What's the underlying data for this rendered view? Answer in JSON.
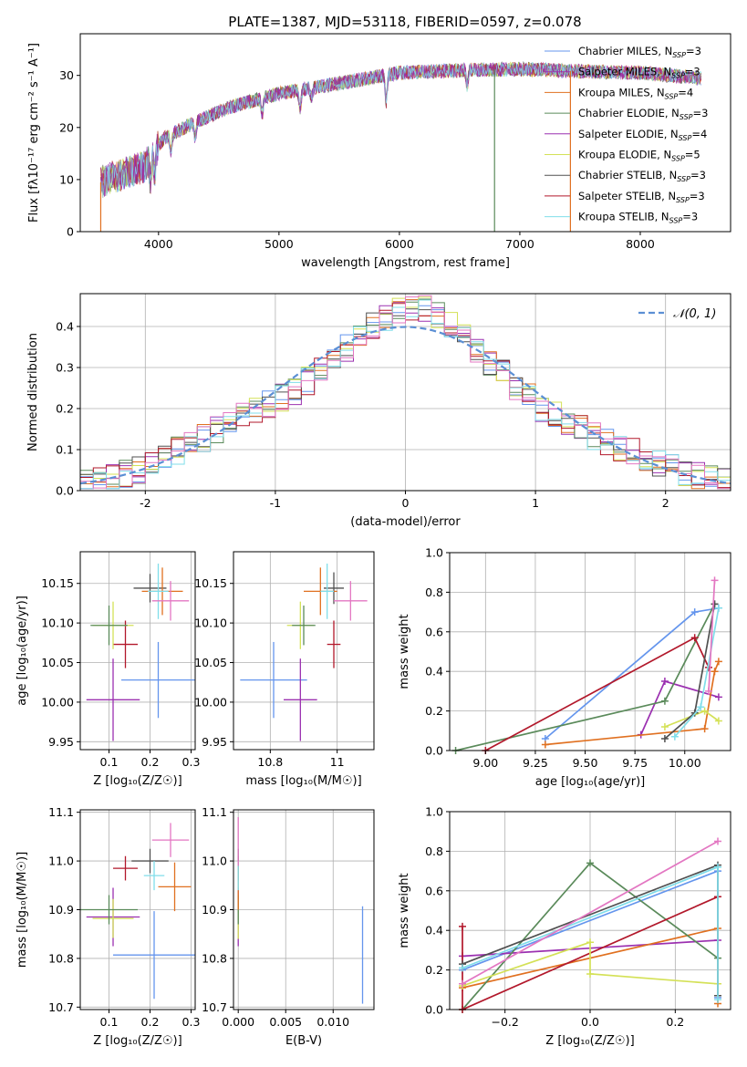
{
  "figure_title": "PLATE=1387, MJD=53118, FIBERID=0597, z=0.078",
  "palette": {
    "Chabrier MILES": "#6495ed",
    "Salpeter MILES": "#9b30b0",
    "Kroupa MILES": "#e07020",
    "Chabrier ELODIE": "#5a8a5a",
    "Salpeter ELODIE": "#9b30b0",
    "Kroupa ELODIE": "#d4e157",
    "Chabrier STELIB": "#505050",
    "Salpeter STELIB": "#b2182b",
    "Kroupa STELIB": "#80deea",
    "pink": "#e377c2",
    "normal_dashed": "#5b8fd4"
  },
  "chart_data": [
    {
      "id": "spectrum",
      "type": "line",
      "xlabel": "wavelength [Angstrom, rest frame]",
      "ylabel": "Flux [fλ10⁻¹⁷ erg cm⁻² s⁻¹ A⁻¹]",
      "xlim": [
        3350,
        8750
      ],
      "ylim": [
        0,
        38
      ],
      "xticks": [
        4000,
        5000,
        6000,
        7000,
        8000
      ],
      "yticks": [
        0,
        10,
        20,
        30
      ],
      "legend_position": "top-right",
      "legend": [
        {
          "label": "Chabrier MILES, N",
          "sub": "SSP",
          "suffix": "=3",
          "color": "#6495ed"
        },
        {
          "label": "Salpeter MILES, N",
          "sub": "SSP",
          "suffix": "=3",
          "color": "#9b30b0"
        },
        {
          "label": "Kroupa MILES, N",
          "sub": "SSP",
          "suffix": "=4",
          "color": "#e07020"
        },
        {
          "label": "Chabrier ELODIE, N",
          "sub": "SSP",
          "suffix": "=3",
          "color": "#5a8a5a"
        },
        {
          "label": "Salpeter ELODIE, N",
          "sub": "SSP",
          "suffix": "=4",
          "color": "#9b30b0"
        },
        {
          "label": "Kroupa ELODIE, N",
          "sub": "SSP",
          "suffix": "=5",
          "color": "#d4e157"
        },
        {
          "label": "Chabrier STELIB, N",
          "sub": "SSP",
          "suffix": "=3",
          "color": "#505050"
        },
        {
          "label": "Salpeter STELIB, N",
          "sub": "SSP",
          "suffix": "=3",
          "color": "#b2182b"
        },
        {
          "label": "Kroupa STELIB, N",
          "sub": "SSP",
          "suffix": "=3",
          "color": "#80deea"
        }
      ],
      "continuum_anchors": [
        [
          3520,
          9.5
        ],
        [
          3700,
          11
        ],
        [
          3880,
          12.5
        ],
        [
          3950,
          15
        ],
        [
          4050,
          18
        ],
        [
          4300,
          21
        ],
        [
          4600,
          24
        ],
        [
          5000,
          26.5
        ],
        [
          5500,
          28.5
        ],
        [
          6000,
          30.5
        ],
        [
          6500,
          31
        ],
        [
          7000,
          31.2
        ],
        [
          7500,
          30.8
        ],
        [
          8000,
          30.5
        ],
        [
          8500,
          29.5
        ]
      ],
      "drops": [
        {
          "x": 3520,
          "color": "#e07020"
        },
        {
          "x": 6790,
          "color": "#5a8a5a"
        },
        {
          "x": 7420,
          "color": "#e07020"
        }
      ]
    },
    {
      "id": "residuals",
      "type": "step-histogram",
      "xlabel": "(data-model)/error",
      "ylabel": "Normed distribution",
      "xlim": [
        -2.5,
        2.5
      ],
      "ylim": [
        0,
        0.48
      ],
      "xticks": [
        -2,
        -1,
        0,
        1,
        2
      ],
      "yticks": [
        0.0,
        0.1,
        0.2,
        0.3,
        0.4
      ],
      "bin_width": 0.1,
      "legend_position": "top-right",
      "legend": [
        {
          "label": "𝒩(0, 1)",
          "style": "dashed",
          "color": "#5b8fd4"
        }
      ],
      "grid": true
    },
    {
      "id": "age-vs-Z",
      "type": "errorbar",
      "xlabel": "Z [log₁₀(Z/Z☉)]",
      "ylabel": "age  [log₁₀(age/yr)]",
      "xlim": [
        0.03,
        0.31
      ],
      "ylim": [
        9.94,
        10.19
      ],
      "xticks": [
        0.1,
        0.2,
        0.3
      ],
      "yticks": [
        9.95,
        10.0,
        10.05,
        10.1,
        10.15
      ],
      "grid": true,
      "points": [
        {
          "x": 0.22,
          "y": 10.028,
          "xerr": 0.09,
          "yerr": 0.048,
          "color": "#6495ed"
        },
        {
          "x": 0.11,
          "y": 10.003,
          "xerr": 0.065,
          "yerr": 0.052,
          "color": "#9b30b0"
        },
        {
          "x": 0.14,
          "y": 10.073,
          "xerr": 0.03,
          "yerr": 0.03,
          "color": "#b2182b"
        },
        {
          "x": 0.11,
          "y": 10.097,
          "xerr": 0.05,
          "yerr": 0.03,
          "color": "#d4e157"
        },
        {
          "x": 0.1,
          "y": 10.097,
          "xerr": 0.045,
          "yerr": 0.025,
          "color": "#5a8a5a"
        },
        {
          "x": 0.2,
          "y": 10.144,
          "xerr": 0.04,
          "yerr": 0.018,
          "color": "#505050"
        },
        {
          "x": 0.23,
          "y": 10.14,
          "xerr": 0.05,
          "yerr": 0.03,
          "color": "#e07020"
        },
        {
          "x": 0.22,
          "y": 10.14,
          "xerr": 0.025,
          "yerr": 0.035,
          "color": "#80deea"
        },
        {
          "x": 0.25,
          "y": 10.128,
          "xerr": 0.045,
          "yerr": 0.025,
          "color": "#e377c2"
        }
      ]
    },
    {
      "id": "age-vs-mass",
      "type": "errorbar",
      "xlabel": "mass [log₁₀(M/M☉)]",
      "ylabel": "",
      "xlim": [
        10.69,
        11.11
      ],
      "ylim": [
        9.94,
        10.19
      ],
      "xticks": [
        10.8,
        11.0
      ],
      "yticks": [
        9.95,
        10.0,
        10.05,
        10.1,
        10.15
      ],
      "grid": true,
      "points": [
        {
          "x": 10.81,
          "y": 10.028,
          "xerr": 0.1,
          "yerr": 0.048,
          "color": "#6495ed"
        },
        {
          "x": 10.89,
          "y": 10.003,
          "xerr": 0.05,
          "yerr": 0.052,
          "color": "#9b30b0"
        },
        {
          "x": 10.99,
          "y": 10.073,
          "xerr": 0.02,
          "yerr": 0.03,
          "color": "#b2182b"
        },
        {
          "x": 10.89,
          "y": 10.097,
          "xerr": 0.04,
          "yerr": 0.03,
          "color": "#d4e157"
        },
        {
          "x": 10.9,
          "y": 10.097,
          "xerr": 0.035,
          "yerr": 0.025,
          "color": "#5a8a5a"
        },
        {
          "x": 10.99,
          "y": 10.144,
          "xerr": 0.03,
          "yerr": 0.02,
          "color": "#505050"
        },
        {
          "x": 10.95,
          "y": 10.14,
          "xerr": 0.05,
          "yerr": 0.03,
          "color": "#e07020"
        },
        {
          "x": 10.97,
          "y": 10.14,
          "xerr": 0.02,
          "yerr": 0.035,
          "color": "#80deea"
        },
        {
          "x": 11.04,
          "y": 10.128,
          "xerr": 0.05,
          "yerr": 0.025,
          "color": "#e377c2"
        }
      ]
    },
    {
      "id": "weight-vs-age",
      "type": "line",
      "xlabel": "age  [log₁₀(age/yr)]",
      "ylabel": "mass weight",
      "xlim": [
        8.82,
        10.23
      ],
      "ylim": [
        0,
        1.0
      ],
      "xticks": [
        9.0,
        9.25,
        9.5,
        9.75,
        10.0
      ],
      "xtick_labels": [
        "9.00",
        "9.25",
        "9.50",
        "9.75",
        "10.00"
      ],
      "yticks": [
        0.0,
        0.2,
        0.4,
        0.6,
        0.8,
        1.0
      ],
      "grid": true,
      "series": [
        {
          "color": "#6495ed",
          "points": [
            [
              9.3,
              0.06
            ],
            [
              10.05,
              0.7
            ],
            [
              10.17,
              0.72
            ]
          ]
        },
        {
          "color": "#9b30b0",
          "points": [
            [
              9.78,
              0.08
            ],
            [
              9.9,
              0.35
            ],
            [
              10.17,
              0.27
            ]
          ]
        },
        {
          "color": "#e07020",
          "points": [
            [
              9.3,
              0.03
            ],
            [
              10.1,
              0.11
            ],
            [
              10.15,
              0.4
            ],
            [
              10.17,
              0.45
            ]
          ]
        },
        {
          "color": "#5a8a5a",
          "points": [
            [
              8.85,
              0.0
            ],
            [
              9.9,
              0.25
            ],
            [
              10.15,
              0.74
            ]
          ]
        },
        {
          "color": "#b2182b",
          "points": [
            [
              9.0,
              0.0
            ],
            [
              10.05,
              0.57
            ],
            [
              10.12,
              0.42
            ]
          ]
        },
        {
          "color": "#d4e157",
          "points": [
            [
              9.9,
              0.12
            ],
            [
              10.1,
              0.2
            ],
            [
              10.17,
              0.15
            ]
          ]
        },
        {
          "color": "#505050",
          "points": [
            [
              9.9,
              0.06
            ],
            [
              10.05,
              0.19
            ],
            [
              10.15,
              0.74
            ]
          ]
        },
        {
          "color": "#80deea",
          "points": [
            [
              9.95,
              0.07
            ],
            [
              10.08,
              0.22
            ],
            [
              10.17,
              0.72
            ]
          ]
        },
        {
          "color": "#e377c2",
          "points": [
            [
              10.12,
              0.3
            ],
            [
              10.15,
              0.86
            ]
          ]
        }
      ]
    },
    {
      "id": "mass-vs-Z",
      "type": "errorbar",
      "xlabel": "Z [log₁₀(Z/Z☉)]",
      "ylabel": "mass [log₁₀(M/M☉)]",
      "xlim": [
        0.03,
        0.31
      ],
      "ylim": [
        10.695,
        11.105
      ],
      "xticks": [
        0.1,
        0.2,
        0.3
      ],
      "yticks": [
        10.7,
        10.8,
        10.9,
        11.0,
        11.1
      ],
      "grid": true,
      "points": [
        {
          "x": 0.21,
          "y": 10.807,
          "xerr": 0.1,
          "yerr": 0.09,
          "color": "#6495ed"
        },
        {
          "x": 0.11,
          "y": 10.885,
          "xerr": 0.065,
          "yerr": 0.06,
          "color": "#9b30b0"
        },
        {
          "x": 0.14,
          "y": 10.985,
          "xerr": 0.03,
          "yerr": 0.025,
          "color": "#b2182b"
        },
        {
          "x": 0.11,
          "y": 10.882,
          "xerr": 0.05,
          "yerr": 0.04,
          "color": "#d4e157"
        },
        {
          "x": 0.1,
          "y": 10.9,
          "xerr": 0.07,
          "yerr": 0.03,
          "color": "#5a8a5a"
        },
        {
          "x": 0.2,
          "y": 11.0,
          "xerr": 0.045,
          "yerr": 0.025,
          "color": "#505050"
        },
        {
          "x": 0.26,
          "y": 10.947,
          "xerr": 0.04,
          "yerr": 0.05,
          "color": "#e07020"
        },
        {
          "x": 0.21,
          "y": 10.97,
          "xerr": 0.025,
          "yerr": 0.03,
          "color": "#80deea"
        },
        {
          "x": 0.25,
          "y": 11.043,
          "xerr": 0.045,
          "yerr": 0.035,
          "color": "#e377c2"
        }
      ]
    },
    {
      "id": "mass-vs-EBV",
      "type": "errorbar",
      "xlabel": "E(B-V)",
      "ylabel": "",
      "xlim": [
        -0.0005,
        0.0143
      ],
      "ylim": [
        10.695,
        11.105
      ],
      "xticks": [
        0.0,
        0.005,
        0.01
      ],
      "xtick_labels": [
        "0.000",
        "0.005",
        "0.010"
      ],
      "yticks": [
        10.7,
        10.8,
        10.9,
        11.0,
        11.1
      ],
      "grid": true,
      "points": [
        {
          "x": 0.0131,
          "y": 10.807,
          "xerr": 0,
          "yerr": 0.1,
          "color": "#6495ed"
        },
        {
          "x": 0.0,
          "y": 10.885,
          "xerr": 0,
          "yerr": 0.06,
          "color": "#9b30b0"
        },
        {
          "x": 0.0,
          "y": 10.985,
          "xerr": 0,
          "yerr": 0.025,
          "color": "#b2182b"
        },
        {
          "x": 0.0,
          "y": 10.88,
          "xerr": 0,
          "yerr": 0.04,
          "color": "#d4e157"
        },
        {
          "x": 0.0,
          "y": 10.9,
          "xerr": 0,
          "yerr": 0.03,
          "color": "#5a8a5a"
        },
        {
          "x": 0.0,
          "y": 11.0,
          "xerr": 0,
          "yerr": 0.025,
          "color": "#505050"
        },
        {
          "x": 0.0,
          "y": 10.95,
          "xerr": 0,
          "yerr": 0.05,
          "color": "#e07020"
        },
        {
          "x": 0.0,
          "y": 10.97,
          "xerr": 0,
          "yerr": 0.03,
          "color": "#80deea"
        },
        {
          "x": 0.0,
          "y": 11.04,
          "xerr": 0,
          "yerr": 0.05,
          "color": "#e377c2"
        }
      ]
    },
    {
      "id": "weight-vs-Z",
      "type": "line",
      "xlabel": "Z [log₁₀(Z/Z☉)]",
      "ylabel": "mass weight",
      "xlim": [
        -0.33,
        0.33
      ],
      "ylim": [
        0,
        1.0
      ],
      "xticks": [
        -0.2,
        0.0,
        0.2
      ],
      "xtick_labels": [
        "−0.2",
        "0.0",
        "0.2"
      ],
      "yticks": [
        0.0,
        0.2,
        0.4,
        0.6,
        0.8,
        1.0
      ],
      "grid": true,
      "series": [
        {
          "color": "#6495ed",
          "points": [
            [
              -0.3,
              0.2
            ],
            [
              0.3,
              0.7
            ],
            [
              0.3,
              0.06
            ]
          ]
        },
        {
          "color": "#9b30b0",
          "points": [
            [
              -0.3,
              0.27
            ],
            [
              0.3,
              0.35
            ]
          ]
        },
        {
          "color": "#e07020",
          "points": [
            [
              -0.3,
              0.11
            ],
            [
              0.3,
              0.41
            ],
            [
              0.3,
              0.03
            ]
          ]
        },
        {
          "color": "#5a8a5a",
          "points": [
            [
              -0.3,
              0.0
            ],
            [
              0.0,
              0.74
            ],
            [
              0.3,
              0.26
            ]
          ]
        },
        {
          "color": "#b2182b",
          "points": [
            [
              -0.3,
              0.42
            ],
            [
              -0.3,
              0.0
            ],
            [
              0.3,
              0.57
            ]
          ]
        },
        {
          "color": "#d4e157",
          "points": [
            [
              -0.3,
              0.12
            ],
            [
              0.0,
              0.34
            ],
            [
              0.0,
              0.18
            ],
            [
              0.3,
              0.13
            ]
          ]
        },
        {
          "color": "#505050",
          "points": [
            [
              -0.3,
              0.23
            ],
            [
              0.3,
              0.73
            ],
            [
              0.3,
              0.07
            ]
          ]
        },
        {
          "color": "#80deea",
          "points": [
            [
              -0.3,
              0.21
            ],
            [
              0.3,
              0.72
            ],
            [
              0.3,
              0.05
            ]
          ]
        },
        {
          "color": "#e377c2",
          "points": [
            [
              -0.3,
              0.13
            ],
            [
              0.3,
              0.85
            ]
          ]
        }
      ]
    }
  ]
}
